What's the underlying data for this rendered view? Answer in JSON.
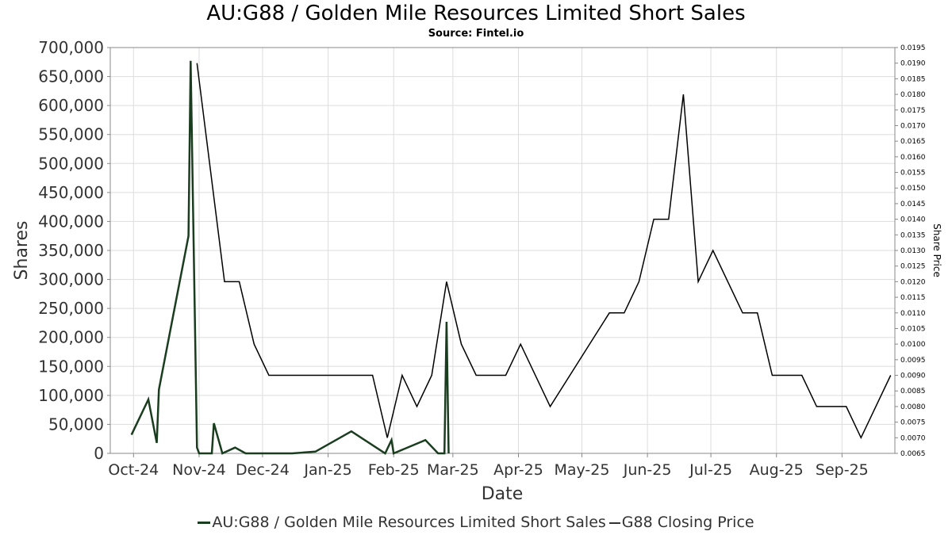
{
  "chart_data": {
    "type": "line",
    "title": "AU:G88 / Golden Mile Resources Limited Short Sales",
    "subtitle": "Source: Fintel.io",
    "xlabel": "Date",
    "ylabel": "Shares",
    "y2label": "Share Price",
    "ylim": [
      0,
      700000
    ],
    "y2lim": [
      0.0065,
      0.0195
    ],
    "xlim": [
      "2024-09-20",
      "2025-09-26"
    ],
    "grid": true,
    "legend_position": "bottom",
    "x_ticks": [
      {
        "date": "2024-10-01",
        "label": "Oct-24"
      },
      {
        "date": "2024-11-01",
        "label": "Nov-24"
      },
      {
        "date": "2024-12-01",
        "label": "Dec-24"
      },
      {
        "date": "2025-01-01",
        "label": "Jan-25"
      },
      {
        "date": "2025-02-01",
        "label": "Feb-25"
      },
      {
        "date": "2025-03-01",
        "label": "Mar-25"
      },
      {
        "date": "2025-04-01",
        "label": "Apr-25"
      },
      {
        "date": "2025-05-01",
        "label": "May-25"
      },
      {
        "date": "2025-06-01",
        "label": "Jun-25"
      },
      {
        "date": "2025-07-01",
        "label": "Jul-25"
      },
      {
        "date": "2025-08-01",
        "label": "Aug-25"
      },
      {
        "date": "2025-09-01",
        "label": "Sep-25"
      }
    ],
    "y_ticks": [
      {
        "value": 0,
        "label": "0"
      },
      {
        "value": 50000,
        "label": "50,000"
      },
      {
        "value": 100000,
        "label": "100,000"
      },
      {
        "value": 150000,
        "label": "150,000"
      },
      {
        "value": 200000,
        "label": "200,000"
      },
      {
        "value": 250000,
        "label": "250,000"
      },
      {
        "value": 300000,
        "label": "300,000"
      },
      {
        "value": 350000,
        "label": "350,000"
      },
      {
        "value": 400000,
        "label": "400,000"
      },
      {
        "value": 450000,
        "label": "450,000"
      },
      {
        "value": 500000,
        "label": "500,000"
      },
      {
        "value": 550000,
        "label": "550,000"
      },
      {
        "value": 600000,
        "label": "600,000"
      },
      {
        "value": 650000,
        "label": "650,000"
      },
      {
        "value": 700000,
        "label": "700,000"
      }
    ],
    "y2_ticks": [
      {
        "value": 0.0065,
        "label": "0.0065"
      },
      {
        "value": 0.007,
        "label": "0.0070"
      },
      {
        "value": 0.0075,
        "label": "0.0075"
      },
      {
        "value": 0.008,
        "label": "0.0080"
      },
      {
        "value": 0.0085,
        "label": "0.0085"
      },
      {
        "value": 0.009,
        "label": "0.0090"
      },
      {
        "value": 0.0095,
        "label": "0.0095"
      },
      {
        "value": 0.01,
        "label": "0.0100"
      },
      {
        "value": 0.0105,
        "label": "0.0105"
      },
      {
        "value": 0.011,
        "label": "0.0110"
      },
      {
        "value": 0.0115,
        "label": "0.0115"
      },
      {
        "value": 0.012,
        "label": "0.0120"
      },
      {
        "value": 0.0125,
        "label": "0.0125"
      },
      {
        "value": 0.013,
        "label": "0.0130"
      },
      {
        "value": 0.0135,
        "label": "0.0135"
      },
      {
        "value": 0.014,
        "label": "0.0140"
      },
      {
        "value": 0.0145,
        "label": "0.0145"
      },
      {
        "value": 0.015,
        "label": "0.0150"
      },
      {
        "value": 0.0155,
        "label": "0.0155"
      },
      {
        "value": 0.016,
        "label": "0.0160"
      },
      {
        "value": 0.0165,
        "label": "0.0165"
      },
      {
        "value": 0.017,
        "label": "0.0170"
      },
      {
        "value": 0.0175,
        "label": "0.0175"
      },
      {
        "value": 0.018,
        "label": "0.0180"
      },
      {
        "value": 0.0185,
        "label": "0.0185"
      },
      {
        "value": 0.019,
        "label": "0.0190"
      },
      {
        "value": 0.0195,
        "label": "0.0195"
      }
    ],
    "series": [
      {
        "name": "AU:G88 / Golden Mile Resources Limited Short Sales",
        "axis": "left",
        "color": "#1a3d1f",
        "points": [
          [
            "2024-09-30",
            32000
          ],
          [
            "2024-10-08",
            93000
          ],
          [
            "2024-10-12",
            18000
          ],
          [
            "2024-10-13",
            110000
          ],
          [
            "2024-10-27",
            375000
          ],
          [
            "2024-10-28",
            677000
          ],
          [
            "2024-10-31",
            10000
          ],
          [
            "2024-11-01",
            0
          ],
          [
            "2024-11-07",
            0
          ],
          [
            "2024-11-08",
            52000
          ],
          [
            "2024-11-12",
            0
          ],
          [
            "2024-11-18",
            10000
          ],
          [
            "2024-11-23",
            0
          ],
          [
            "2024-12-15",
            0
          ],
          [
            "2024-12-26",
            3000
          ],
          [
            "2025-01-12",
            38000
          ],
          [
            "2025-01-28",
            0
          ],
          [
            "2025-01-31",
            23000
          ],
          [
            "2025-02-01",
            0
          ],
          [
            "2025-02-16",
            23000
          ],
          [
            "2025-02-22",
            0
          ],
          [
            "2025-02-25",
            0
          ],
          [
            "2025-02-26",
            227000
          ],
          [
            "2025-02-27",
            0
          ]
        ]
      },
      {
        "name": "G88 Closing Price",
        "axis": "right",
        "color": "#000000",
        "points": [
          [
            "2024-10-31",
            0.019
          ],
          [
            "2024-11-13",
            0.012
          ],
          [
            "2024-11-20",
            0.012
          ],
          [
            "2024-11-27",
            0.01
          ],
          [
            "2024-12-04",
            0.009
          ],
          [
            "2025-01-22",
            0.009
          ],
          [
            "2025-01-29",
            0.007
          ],
          [
            "2025-02-05",
            0.009
          ],
          [
            "2025-02-12",
            0.008
          ],
          [
            "2025-02-19",
            0.009
          ],
          [
            "2025-02-26",
            0.012
          ],
          [
            "2025-03-05",
            0.01
          ],
          [
            "2025-03-12",
            0.009
          ],
          [
            "2025-03-26",
            0.009
          ],
          [
            "2025-04-02",
            0.01
          ],
          [
            "2025-04-16",
            0.008
          ],
          [
            "2025-05-14",
            0.011
          ],
          [
            "2025-05-21",
            0.011
          ],
          [
            "2025-05-28",
            0.012
          ],
          [
            "2025-06-04",
            0.014
          ],
          [
            "2025-06-11",
            0.014
          ],
          [
            "2025-06-18",
            0.018
          ],
          [
            "2025-06-25",
            0.012
          ],
          [
            "2025-07-02",
            0.013
          ],
          [
            "2025-07-16",
            0.011
          ],
          [
            "2025-07-23",
            0.011
          ],
          [
            "2025-07-30",
            0.009
          ],
          [
            "2025-08-13",
            0.009
          ],
          [
            "2025-08-20",
            0.008
          ],
          [
            "2025-09-03",
            0.008
          ],
          [
            "2025-09-10",
            0.007
          ],
          [
            "2025-09-24",
            0.009
          ]
        ]
      }
    ]
  }
}
